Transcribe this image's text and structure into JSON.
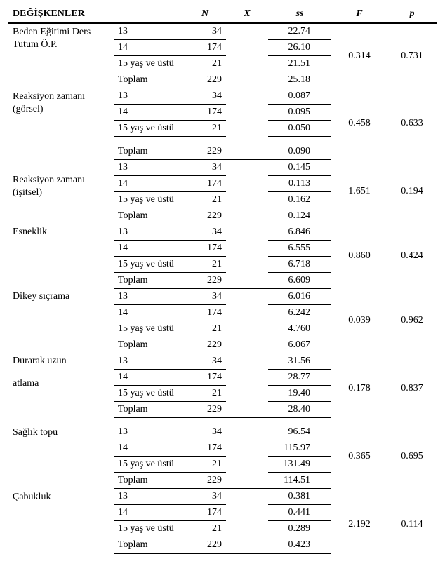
{
  "headers": {
    "var": "DEĞİŞKENLER",
    "age": "",
    "n": "N",
    "x": "X",
    "ss": "ss",
    "f": "F",
    "p": "p"
  },
  "age_labels": {
    "a13": "13",
    "a14": "14",
    "a15": "15 yaş ve üstü",
    "total": "Toplam"
  },
  "groups": [
    {
      "label_line1": "Beden Eğitimi Ders",
      "label_line2": "Tutum Ö.P.",
      "rows": [
        {
          "age": "a13",
          "n": "34",
          "ss": "22.74"
        },
        {
          "age": "a14",
          "n": "174",
          "ss": "26.10"
        },
        {
          "age": "a15",
          "n": "21",
          "ss": "21.51"
        },
        {
          "age": "total",
          "n": "229",
          "ss": "25.18"
        }
      ],
      "f": "0.314",
      "p": "0.731"
    },
    {
      "label_line1": "Reaksiyon zamanı",
      "label_line2": "(görsel)",
      "rows": [
        {
          "age": "a13",
          "n": "34",
          "ss": "0.087"
        },
        {
          "age": "a14",
          "n": "174",
          "ss": "0.095"
        },
        {
          "age": "a15",
          "n": "21",
          "ss": "0.050"
        },
        {
          "age": "total",
          "n": "229",
          "ss": "0.090"
        }
      ],
      "f": "0.458",
      "p": "0.633",
      "gap_before_total": true
    },
    {
      "label_line1": "Reaksiyon zamanı",
      "label_line2": "(işitsel)",
      "label_mid": true,
      "rows": [
        {
          "age": "a13",
          "n": "34",
          "ss": "0.145"
        },
        {
          "age": "a14",
          "n": "174",
          "ss": "0.113"
        },
        {
          "age": "a15",
          "n": "21",
          "ss": "0.162"
        },
        {
          "age": "total",
          "n": "229",
          "ss": "0.124"
        }
      ],
      "f": "1.651",
      "p": "0.194"
    },
    {
      "label_line1": "Esneklik",
      "rows": [
        {
          "age": "a13",
          "n": "34",
          "ss": "6.846"
        },
        {
          "age": "a14",
          "n": "174",
          "ss": "6.555"
        },
        {
          "age": "a15",
          "n": "21",
          "ss": "6.718"
        },
        {
          "age": "total",
          "n": "229",
          "ss": "6.609"
        }
      ],
      "f": "0.860",
      "p": "0.424"
    },
    {
      "label_line1": "Dikey sıçrama",
      "rows": [
        {
          "age": "a13",
          "n": "34",
          "ss": "6.016"
        },
        {
          "age": "a14",
          "n": "174",
          "ss": "6.242"
        },
        {
          "age": "a15",
          "n": "21",
          "ss": "4.760"
        },
        {
          "age": "total",
          "n": "229",
          "ss": "6.067"
        }
      ],
      "f": "0.039",
      "p": "0.962"
    },
    {
      "label_line1": "Durarak        uzun",
      "label_line2": "atlama",
      "label_gap": true,
      "rows": [
        {
          "age": "a13",
          "n": "34",
          "ss": "31.56"
        },
        {
          "age": "a14",
          "n": "174",
          "ss": "28.77"
        },
        {
          "age": "a15",
          "n": "21",
          "ss": "19.40"
        },
        {
          "age": "total",
          "n": "229",
          "ss": "28.40"
        }
      ],
      "f": "0.178",
      "p": "0.837",
      "gap_after": true
    },
    {
      "label_line1": "Sağlık topu",
      "rows": [
        {
          "age": "a13",
          "n": "34",
          "ss": "96.54"
        },
        {
          "age": "a14",
          "n": "174",
          "ss": "115.97"
        },
        {
          "age": "a15",
          "n": "21",
          "ss": "131.49"
        },
        {
          "age": "total",
          "n": "229",
          "ss": "114.51"
        }
      ],
      "f": "0.365",
      "p": "0.695"
    },
    {
      "label_line1": "Çabukluk",
      "rows": [
        {
          "age": "a13",
          "n": "34",
          "ss": "0.381"
        },
        {
          "age": "a14",
          "n": "174",
          "ss": "0.441"
        },
        {
          "age": "a15",
          "n": "21",
          "ss": "0.289"
        },
        {
          "age": "total",
          "n": "229",
          "ss": "0.423"
        }
      ],
      "f": "2.192",
      "p": "0.114",
      "gap_after": true,
      "last": true
    }
  ]
}
